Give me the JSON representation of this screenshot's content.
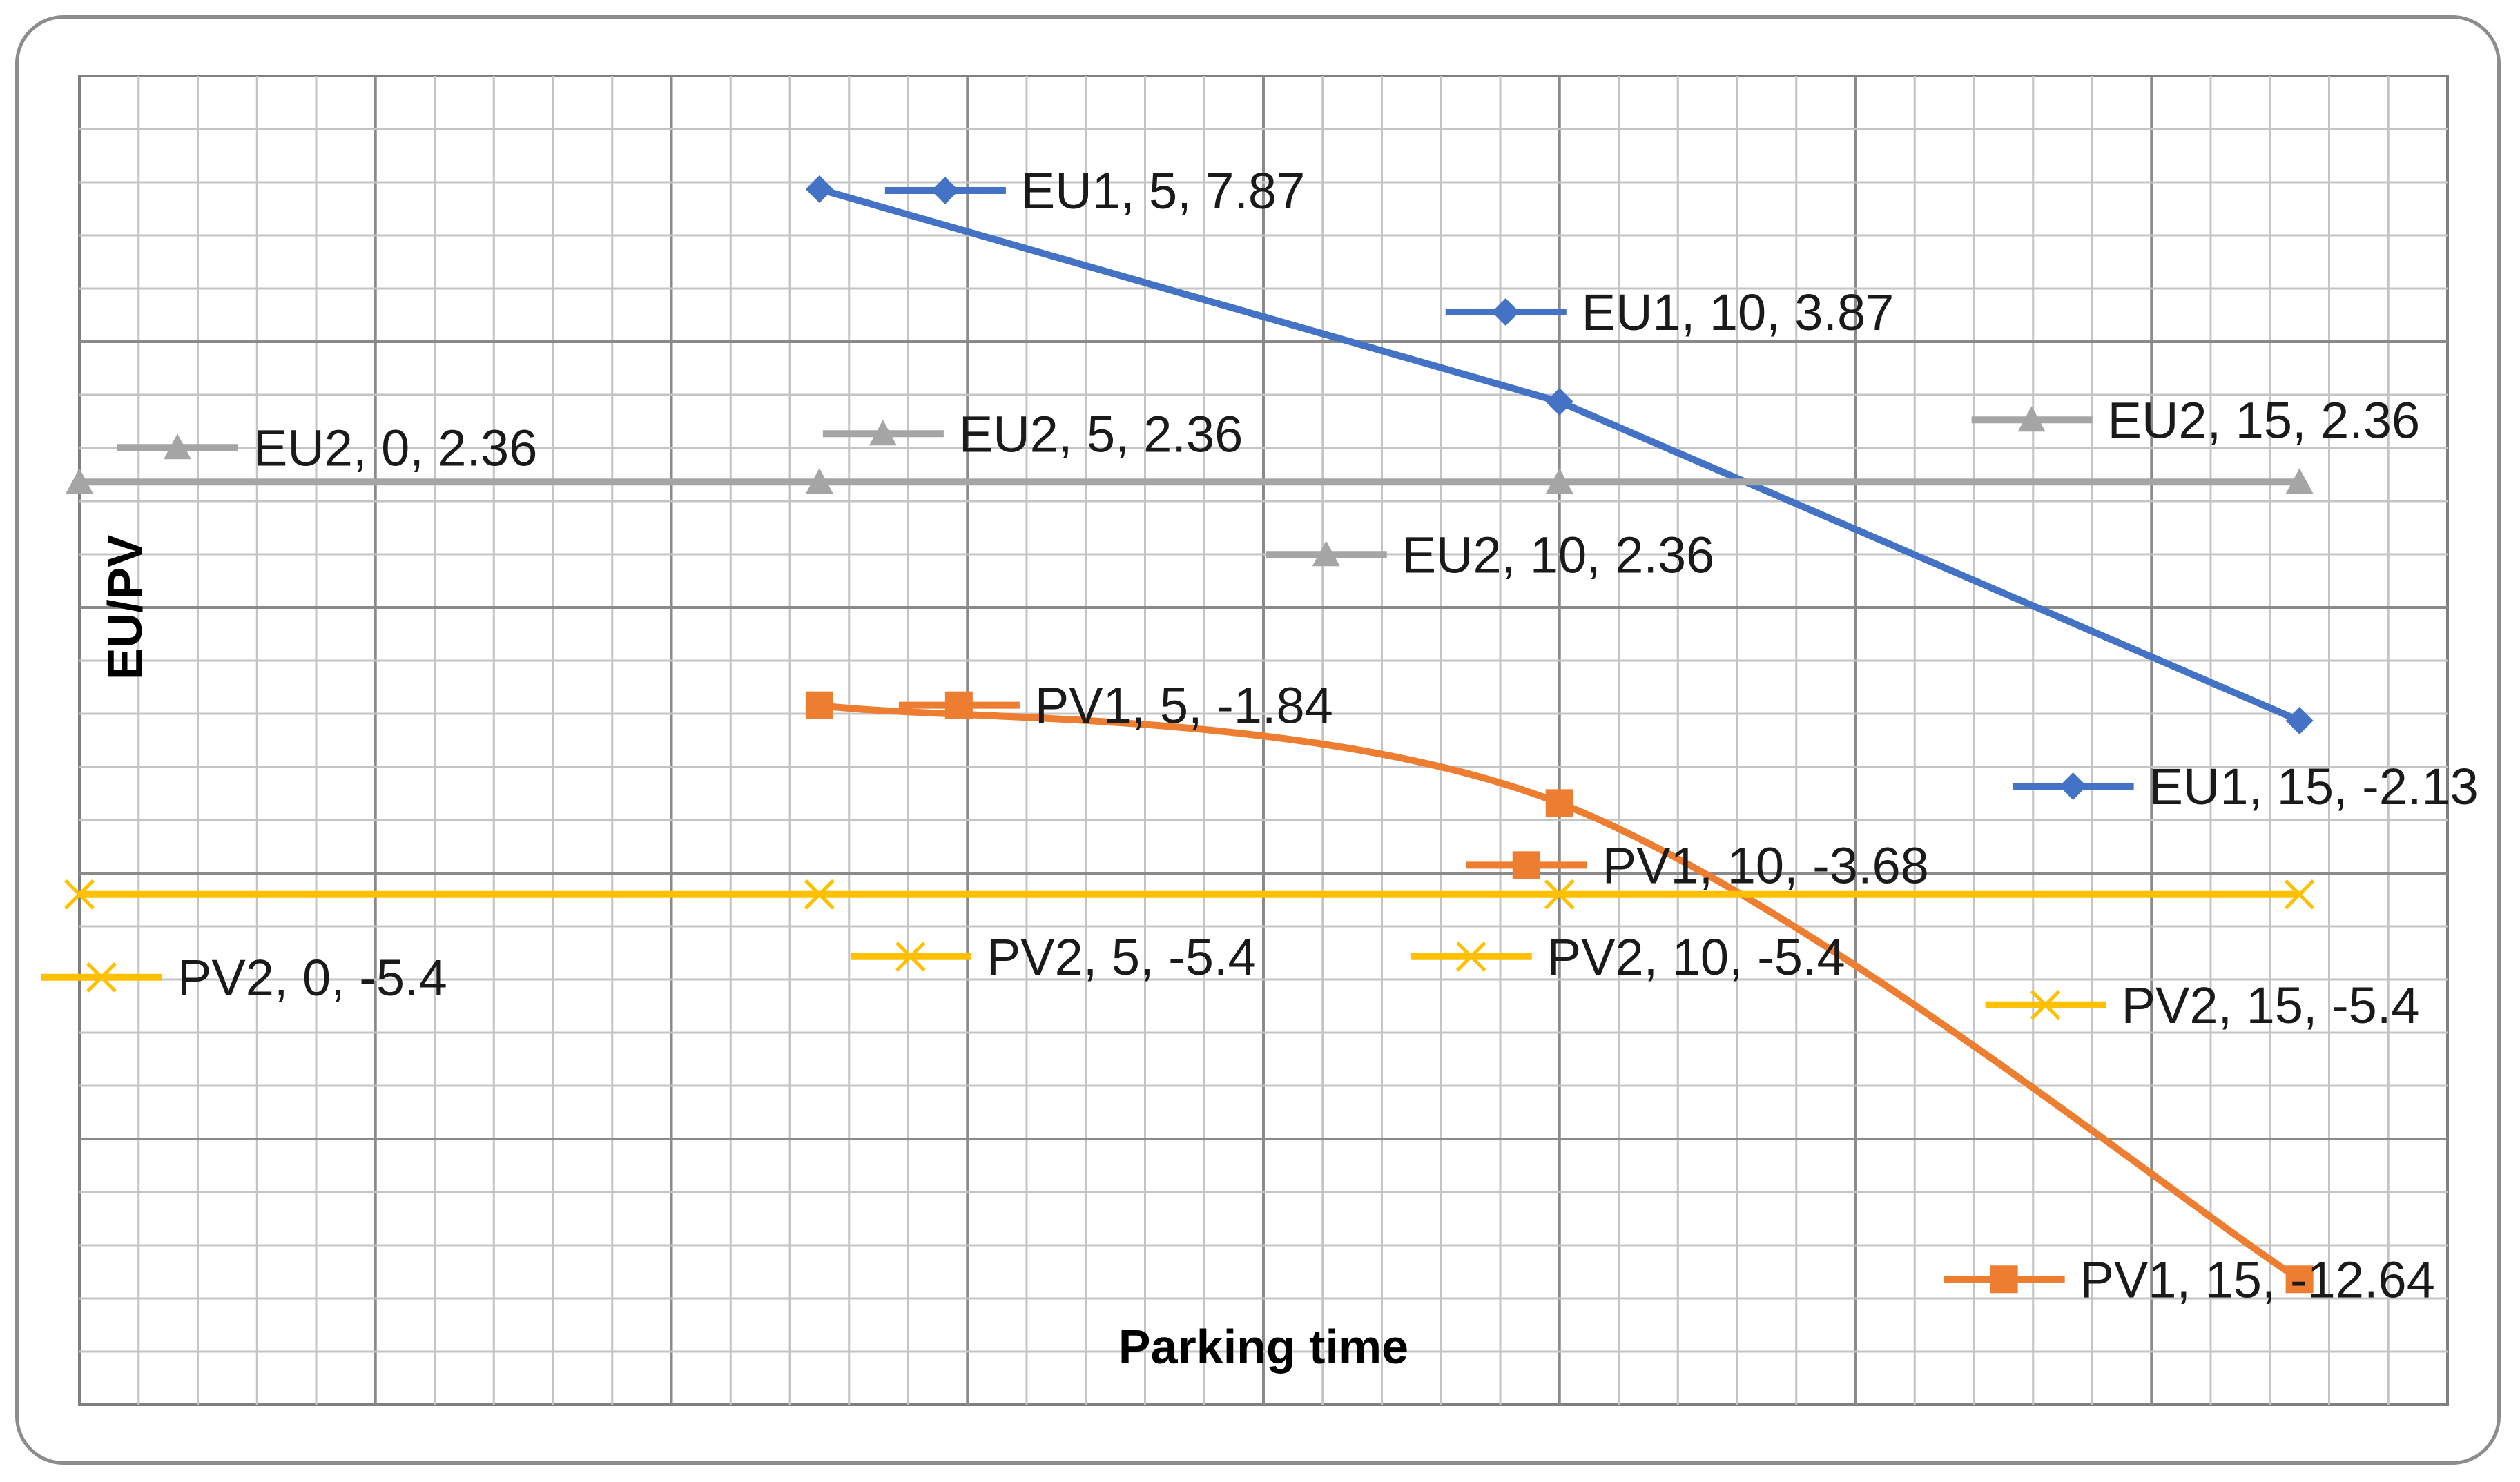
{
  "chart_data": {
    "type": "line",
    "xlabel": "Parking time",
    "ylabel": "EU/PV",
    "x": [
      0,
      5,
      10,
      15
    ],
    "xlim": [
      0,
      16
    ],
    "ylim": [
      -15,
      10
    ],
    "grid": true,
    "series": [
      {
        "name": "EU1",
        "color": "#4472C4",
        "marker": "diamond-icon",
        "x": [
          5,
          10,
          15
        ],
        "values": [
          7.87,
          3.87,
          -2.13
        ],
        "smooth": false,
        "labels": [
          "EU1, 5, 7.87",
          "EU1, 10, 3.87",
          "EU1, 15, -2.13"
        ]
      },
      {
        "name": "EU2",
        "color": "#A5A5A5",
        "marker": "triangle-icon",
        "x": [
          0,
          5,
          10,
          15
        ],
        "values": [
          2.36,
          2.36,
          2.36,
          2.36
        ],
        "smooth": false,
        "labels": [
          "EU2, 0, 2.36",
          "EU2, 5, 2.36",
          "EU2, 10, 2.36",
          "EU2, 15, 2.36"
        ]
      },
      {
        "name": "PV1",
        "color": "#ED7D31",
        "marker": "square-icon",
        "x": [
          5,
          10,
          15
        ],
        "values": [
          -1.84,
          -3.68,
          -12.64
        ],
        "smooth": true,
        "labels": [
          "PV1, 5, -1.84",
          "PV1, 10, -3.68",
          "PV1, 15, -12.64"
        ]
      },
      {
        "name": "PV2",
        "color": "#FFC000",
        "marker": "x-icon",
        "x": [
          0,
          5,
          10,
          15
        ],
        "values": [
          -5.4,
          -5.4,
          -5.4,
          -5.4
        ],
        "smooth": false,
        "labels": [
          "PV2, 0, -5.4",
          "PV2, 5, -5.4",
          "PV2, 10, -5.4",
          "PV2, 15, -5.4"
        ]
      }
    ]
  }
}
